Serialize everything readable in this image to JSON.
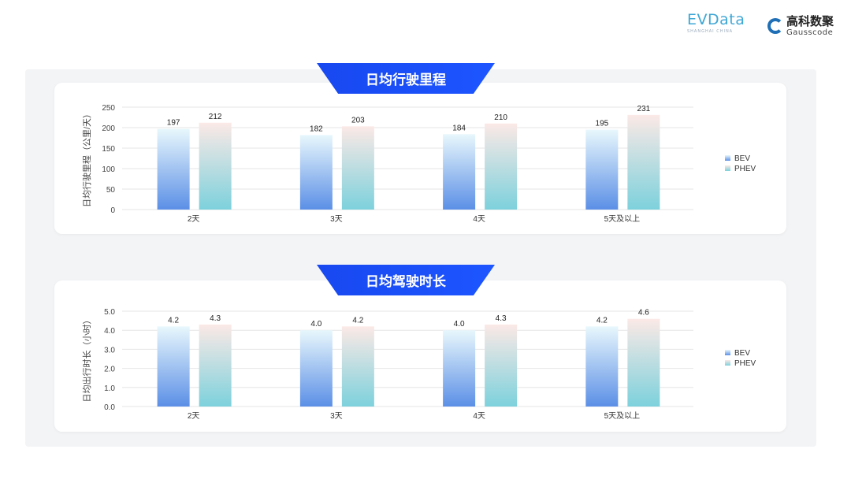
{
  "logos": {
    "evdata": "EVData",
    "evdata_sub": "SHANGHAI CHINA",
    "gauss_cn": "高科数聚",
    "gauss_en": "Gausscode"
  },
  "colors": {
    "bev_top": "#e8f7fc",
    "bev_bottom": "#5b8fe6",
    "phev_top": "#fbe9e6",
    "phev_bottom": "#7dd1dc",
    "banner": "#1a4df5"
  },
  "chart_data": [
    {
      "type": "bar",
      "title": "日均行驶里程",
      "ylabel": "日均行驶里程（公里/天）",
      "xlabel": "",
      "categories": [
        "2天",
        "3天",
        "4天",
        "5天及以上"
      ],
      "series": [
        {
          "name": "BEV",
          "values": [
            197,
            182,
            184,
            195
          ],
          "labels": [
            "197",
            "182",
            "184",
            "195"
          ]
        },
        {
          "name": "PHEV",
          "values": [
            212,
            203,
            210,
            231
          ],
          "labels": [
            "212",
            "203",
            "210",
            "231"
          ]
        }
      ],
      "ylim": [
        0,
        250
      ],
      "yticks": [
        "0",
        "50",
        "100",
        "150",
        "200",
        "250"
      ],
      "grid": true,
      "legend": "right"
    },
    {
      "type": "bar",
      "title": "日均驾驶时长",
      "ylabel": "日均出行时长（小时）",
      "xlabel": "",
      "categories": [
        "2天",
        "3天",
        "4天",
        "5天及以上"
      ],
      "series": [
        {
          "name": "BEV",
          "values": [
            4.2,
            4.0,
            4.0,
            4.2
          ],
          "labels": [
            "4.2",
            "4.0",
            "4.0",
            "4.2"
          ]
        },
        {
          "name": "PHEV",
          "values": [
            4.3,
            4.2,
            4.3,
            4.6
          ],
          "labels": [
            "4.3",
            "4.2",
            "4.3",
            "4.6"
          ]
        }
      ],
      "ylim": [
        0,
        5
      ],
      "yticks": [
        "0.0",
        "1.0",
        "2.0",
        "3.0",
        "4.0",
        "5.0"
      ],
      "grid": true,
      "legend": "right"
    }
  ]
}
